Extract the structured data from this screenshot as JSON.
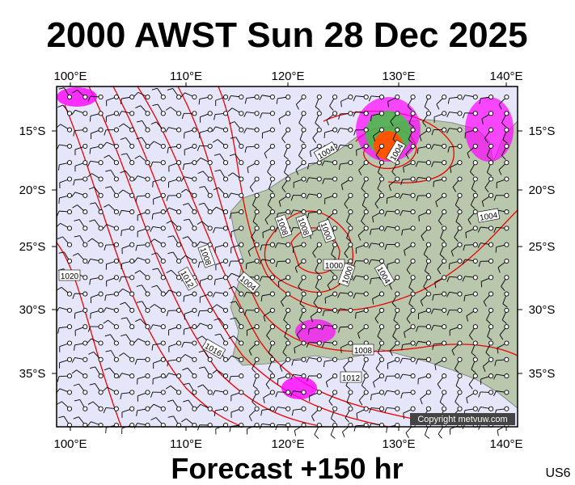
{
  "header": {
    "title": "2000 AWST Sun 28 Dec 2025"
  },
  "map": {
    "longitude_labels": [
      "100°E",
      "110°E",
      "120°E",
      "130°E",
      "140°E"
    ],
    "latitude_labels": [
      "15°S",
      "20°S",
      "25°S",
      "30°S",
      "35°S"
    ],
    "isobar_labels": [
      "1004",
      "1004",
      "1004",
      "1008",
      "1008",
      "1000",
      "1000",
      "1000",
      "1004",
      "1008",
      "1012",
      "1004",
      "1020",
      "1016",
      "1008",
      "1012"
    ],
    "copyright": "Copyright metvuw.com"
  },
  "footer": {
    "forecast": "Forecast +150 hr",
    "code": "US6"
  }
}
